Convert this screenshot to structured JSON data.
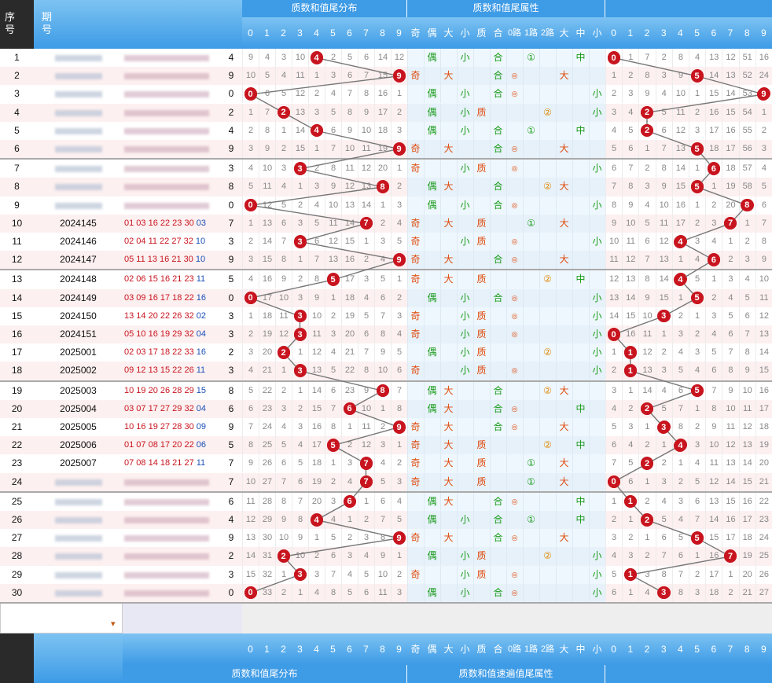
{
  "headers": {
    "seq_label": "序号",
    "issue_label": "期号",
    "primesum_dist": "质数和值尾分布",
    "primesum_attr": "质数和值尾属性",
    "foot_dist": "质数和值尾分布",
    "foot_attr": "质数和值速遍值尾属性",
    "digits": [
      "0",
      "1",
      "2",
      "3",
      "4",
      "5",
      "6",
      "7",
      "8",
      "9"
    ],
    "attr_labels": [
      "奇",
      "偶",
      "大",
      "小",
      "质",
      "合",
      "0路",
      "1路",
      "2路",
      "大",
      "中",
      "小"
    ],
    "scroll_arrow": "▾"
  },
  "rows": [
    {
      "seq": "1",
      "issue": "",
      "draw": "",
      "blue": "",
      "tail": 4,
      "miss": [
        "9",
        "4",
        "3",
        "10",
        "",
        "2",
        "5",
        "6",
        "14",
        "12"
      ],
      "oe": "偶",
      "bs": "小",
      "pc": "合",
      "road": "①",
      "zone": "中",
      "d2": 0,
      "miss2": [
        "",
        "1",
        "7",
        "2",
        "8",
        "4",
        "13",
        "12",
        "51",
        "16"
      ],
      "blur": true
    },
    {
      "seq": "2",
      "issue": "",
      "draw": "",
      "blue": "",
      "tail": 9,
      "miss": [
        "10",
        "5",
        "4",
        "11",
        "1",
        "3",
        "6",
        "7",
        "15",
        ""
      ],
      "oe": "奇",
      "bs": "大",
      "pc": "合",
      "road": "◎",
      "zone": "大",
      "d2": 5,
      "miss2": [
        "1",
        "2",
        "8",
        "3",
        "9",
        "",
        "14",
        "13",
        "52",
        "24"
      ],
      "blur": true
    },
    {
      "seq": "3",
      "issue": "",
      "draw": "",
      "blue": "",
      "tail": 0,
      "miss": [
        "",
        "6",
        "5",
        "12",
        "2",
        "4",
        "7",
        "8",
        "16",
        "1"
      ],
      "oe": "偶",
      "bs": "小",
      "pc": "合",
      "road": "◎",
      "zone": "小",
      "d2": 9,
      "miss2": [
        "2",
        "3",
        "9",
        "4",
        "10",
        "1",
        "15",
        "14",
        "53",
        ""
      ],
      "blur": true
    },
    {
      "seq": "4",
      "issue": "",
      "draw": "",
      "blue": "",
      "tail": 2,
      "miss": [
        "1",
        "7",
        "",
        "13",
        "3",
        "5",
        "8",
        "9",
        "17",
        "2"
      ],
      "oe": "偶",
      "bs": "小",
      "pc": "质",
      "road": "②",
      "zone": "小",
      "d2": 2,
      "miss2": [
        "3",
        "4",
        "",
        "5",
        "11",
        "2",
        "16",
        "15",
        "54",
        "1"
      ],
      "blur": true
    },
    {
      "seq": "5",
      "issue": "",
      "draw": "",
      "blue": "",
      "tail": 4,
      "miss": [
        "2",
        "8",
        "1",
        "14",
        "",
        "6",
        "9",
        "10",
        "18",
        "3"
      ],
      "oe": "偶",
      "bs": "小",
      "pc": "合",
      "road": "①",
      "zone": "中",
      "d2": 2,
      "miss2": [
        "4",
        "5",
        "",
        "6",
        "12",
        "3",
        "17",
        "16",
        "55",
        "2"
      ],
      "blur": true
    },
    {
      "seq": "6",
      "issue": "",
      "draw": "",
      "blue": "",
      "tail": 9,
      "miss": [
        "3",
        "9",
        "2",
        "15",
        "1",
        "7",
        "10",
        "11",
        "19",
        ""
      ],
      "oe": "奇",
      "bs": "大",
      "pc": "合",
      "road": "◎",
      "zone": "大",
      "d2": 5,
      "miss2": [
        "5",
        "6",
        "1",
        "7",
        "13",
        "",
        "18",
        "17",
        "56",
        "3"
      ],
      "blur": true
    },
    {
      "seq": "7",
      "issue": "",
      "draw": "",
      "blue": "",
      "tail": 3,
      "miss": [
        "4",
        "10",
        "3",
        "",
        "2",
        "8",
        "11",
        "12",
        "20",
        "1"
      ],
      "oe": "奇",
      "bs": "小",
      "pc": "质",
      "road": "◎",
      "zone": "小",
      "d2": 6,
      "miss2": [
        "6",
        "7",
        "2",
        "8",
        "14",
        "1",
        "",
        "18",
        "57",
        "4"
      ],
      "blur": true
    },
    {
      "seq": "8",
      "issue": "",
      "draw": "",
      "blue": "",
      "tail": 8,
      "miss": [
        "5",
        "11",
        "4",
        "1",
        "3",
        "9",
        "12",
        "13",
        "",
        "2"
      ],
      "oe": "偶",
      "bs": "大",
      "pc": "合",
      "road": "②",
      "zone": "大",
      "d2": 5,
      "miss2": [
        "7",
        "8",
        "3",
        "9",
        "15",
        "",
        "1",
        "19",
        "58",
        "5"
      ],
      "blur": true
    },
    {
      "seq": "9",
      "issue": "",
      "draw": "",
      "blue": "",
      "tail": 0,
      "miss": [
        "",
        "12",
        "5",
        "2",
        "4",
        "10",
        "13",
        "14",
        "1",
        "3"
      ],
      "oe": "偶",
      "bs": "小",
      "pc": "合",
      "road": "◎",
      "zone": "小",
      "d2": 8,
      "miss2": [
        "8",
        "9",
        "4",
        "10",
        "16",
        "1",
        "2",
        "20",
        "",
        "6"
      ],
      "blur": true
    },
    {
      "seq": "10",
      "issue": "2024145",
      "draw": "01 03 16 22 23 30",
      "blue": "03",
      "tail": 7,
      "miss": [
        "1",
        "13",
        "6",
        "3",
        "5",
        "11",
        "14",
        "",
        "2",
        "4"
      ],
      "oe": "奇",
      "bs": "大",
      "pc": "质",
      "road": "①",
      "zone": "大",
      "d2": 7,
      "miss2": [
        "9",
        "10",
        "5",
        "11",
        "17",
        "2",
        "3",
        "",
        "1",
        "7"
      ],
      "blur": false
    },
    {
      "seq": "11",
      "issue": "2024146",
      "draw": "02 04 11 22 27 32",
      "blue": "10",
      "tail": 3,
      "miss": [
        "2",
        "14",
        "7",
        "",
        "6",
        "12",
        "15",
        "1",
        "3",
        "5"
      ],
      "oe": "奇",
      "bs": "小",
      "pc": "质",
      "road": "◎",
      "zone": "小",
      "d2": 4,
      "miss2": [
        "10",
        "11",
        "6",
        "12",
        "",
        "3",
        "4",
        "1",
        "2",
        "8"
      ],
      "blur": false
    },
    {
      "seq": "12",
      "issue": "2024147",
      "draw": "05 11 13 16 21 30",
      "blue": "10",
      "tail": 9,
      "miss": [
        "3",
        "15",
        "8",
        "1",
        "7",
        "13",
        "16",
        "2",
        "4",
        ""
      ],
      "oe": "奇",
      "bs": "大",
      "pc": "合",
      "road": "◎",
      "zone": "大",
      "d2": 6,
      "miss2": [
        "11",
        "12",
        "7",
        "13",
        "1",
        "4",
        "",
        "2",
        "3",
        "9"
      ],
      "blur": false
    },
    {
      "seq": "13",
      "issue": "2024148",
      "draw": "02 06 15 16 21 23",
      "blue": "11",
      "tail": 5,
      "miss": [
        "4",
        "16",
        "9",
        "2",
        "8",
        "",
        "17",
        "3",
        "5",
        "1"
      ],
      "oe": "奇",
      "bs": "大",
      "pc": "质",
      "road": "②",
      "zone": "中",
      "d2": 4,
      "miss2": [
        "12",
        "13",
        "8",
        "14",
        "",
        "5",
        "1",
        "3",
        "4",
        "10"
      ],
      "blur": false
    },
    {
      "seq": "14",
      "issue": "2024149",
      "draw": "03 09 16 17 18 22",
      "blue": "16",
      "tail": 0,
      "miss": [
        "",
        "17",
        "10",
        "3",
        "9",
        "1",
        "18",
        "4",
        "6",
        "2"
      ],
      "oe": "偶",
      "bs": "小",
      "pc": "合",
      "road": "◎",
      "zone": "小",
      "d2": 5,
      "miss2": [
        "13",
        "14",
        "9",
        "15",
        "1",
        "",
        "2",
        "4",
        "5",
        "11"
      ],
      "blur": false
    },
    {
      "seq": "15",
      "issue": "2024150",
      "draw": "13 14 20 22 26 32",
      "blue": "02",
      "tail": 3,
      "miss": [
        "1",
        "18",
        "11",
        "",
        "10",
        "2",
        "19",
        "5",
        "7",
        "3"
      ],
      "oe": "奇",
      "bs": "小",
      "pc": "质",
      "road": "◎",
      "zone": "小",
      "d2": 3,
      "miss2": [
        "14",
        "15",
        "10",
        "",
        "2",
        "1",
        "3",
        "5",
        "6",
        "12"
      ],
      "blur": false
    },
    {
      "seq": "16",
      "issue": "2024151",
      "draw": "05 10 16 19 29 32",
      "blue": "04",
      "tail": 3,
      "miss": [
        "2",
        "19",
        "12",
        "",
        "11",
        "3",
        "20",
        "6",
        "8",
        "4"
      ],
      "oe": "奇",
      "bs": "小",
      "pc": "质",
      "road": "◎",
      "zone": "小",
      "d2": 0,
      "miss2": [
        "",
        "16",
        "11",
        "1",
        "3",
        "2",
        "4",
        "6",
        "7",
        "13"
      ],
      "blur": false
    },
    {
      "seq": "17",
      "issue": "2025001",
      "draw": "02 03 17 18 22 33",
      "blue": "16",
      "tail": 2,
      "miss": [
        "3",
        "20",
        "",
        "1",
        "12",
        "4",
        "21",
        "7",
        "9",
        "5"
      ],
      "oe": "偶",
      "bs": "小",
      "pc": "质",
      "road": "②",
      "zone": "小",
      "d2": 1,
      "miss2": [
        "1",
        "",
        "12",
        "2",
        "4",
        "3",
        "5",
        "7",
        "8",
        "14"
      ],
      "blur": false
    },
    {
      "seq": "18",
      "issue": "2025002",
      "draw": "09 12 13 15 22 26",
      "blue": "11",
      "tail": 3,
      "miss": [
        "4",
        "21",
        "1",
        "",
        "13",
        "5",
        "22",
        "8",
        "10",
        "6"
      ],
      "oe": "奇",
      "bs": "小",
      "pc": "质",
      "road": "◎",
      "zone": "小",
      "d2": 1,
      "miss2": [
        "2",
        "",
        "13",
        "3",
        "5",
        "4",
        "6",
        "8",
        "9",
        "15"
      ],
      "blur": false
    },
    {
      "seq": "19",
      "issue": "2025003",
      "draw": "10 19 20 26 28 29",
      "blue": "15",
      "tail": 8,
      "miss": [
        "5",
        "22",
        "2",
        "1",
        "14",
        "6",
        "23",
        "9",
        "",
        "7"
      ],
      "oe": "偶",
      "bs": "大",
      "pc": "合",
      "road": "②",
      "zone": "大",
      "d2": 5,
      "miss2": [
        "3",
        "1",
        "14",
        "4",
        "6",
        "",
        "7",
        "9",
        "10",
        "16"
      ],
      "blur": false
    },
    {
      "seq": "20",
      "issue": "2025004",
      "draw": "03 07 17 27 29 32",
      "blue": "04",
      "tail": 6,
      "miss": [
        "6",
        "23",
        "3",
        "2",
        "15",
        "7",
        "",
        "10",
        "1",
        "8"
      ],
      "oe": "偶",
      "bs": "大",
      "pc": "合",
      "road": "◎",
      "zone": "中",
      "d2": 2,
      "miss2": [
        "4",
        "2",
        "",
        "5",
        "7",
        "1",
        "8",
        "10",
        "11",
        "17"
      ],
      "blur": false
    },
    {
      "seq": "21",
      "issue": "2025005",
      "draw": "10 16 19 27 28 30",
      "blue": "09",
      "tail": 9,
      "miss": [
        "7",
        "24",
        "4",
        "3",
        "16",
        "8",
        "1",
        "11",
        "2",
        ""
      ],
      "oe": "奇",
      "bs": "大",
      "pc": "合",
      "road": "◎",
      "zone": "大",
      "d2": 3,
      "miss2": [
        "5",
        "3",
        "1",
        "",
        "8",
        "2",
        "9",
        "11",
        "12",
        "18"
      ],
      "blur": false
    },
    {
      "seq": "22",
      "issue": "2025006",
      "draw": "01 07 08 17 20 22",
      "blue": "06",
      "tail": 5,
      "miss": [
        "8",
        "25",
        "5",
        "4",
        "17",
        "",
        "2",
        "12",
        "3",
        "1"
      ],
      "oe": "奇",
      "bs": "大",
      "pc": "质",
      "road": "②",
      "zone": "中",
      "d2": 4,
      "miss2": [
        "6",
        "4",
        "2",
        "1",
        "",
        "3",
        "10",
        "12",
        "13",
        "19"
      ],
      "blur": false
    },
    {
      "seq": "23",
      "issue": "2025007",
      "draw": "07 08 14 18 21 27",
      "blue": "11",
      "tail": 7,
      "miss": [
        "9",
        "26",
        "6",
        "5",
        "18",
        "1",
        "3",
        "",
        "4",
        "2"
      ],
      "oe": "奇",
      "bs": "大",
      "pc": "质",
      "road": "①",
      "zone": "大",
      "d2": 2,
      "miss2": [
        "7",
        "5",
        "",
        "2",
        "1",
        "4",
        "11",
        "13",
        "14",
        "20"
      ],
      "blur": false
    },
    {
      "seq": "24",
      "issue": "",
      "draw": "",
      "blue": "",
      "tail": 7,
      "miss": [
        "10",
        "27",
        "7",
        "6",
        "19",
        "2",
        "4",
        "",
        "5",
        "3"
      ],
      "oe": "奇",
      "bs": "大",
      "pc": "质",
      "road": "①",
      "zone": "大",
      "d2": 0,
      "miss2": [
        "",
        "6",
        "1",
        "3",
        "2",
        "5",
        "12",
        "14",
        "15",
        "21"
      ],
      "blur": true
    },
    {
      "seq": "25",
      "issue": "",
      "draw": "",
      "blue": "",
      "tail": 6,
      "miss": [
        "11",
        "28",
        "8",
        "7",
        "20",
        "3",
        "",
        "1",
        "6",
        "4"
      ],
      "oe": "偶",
      "bs": "大",
      "pc": "合",
      "road": "◎",
      "zone": "中",
      "d2": 1,
      "miss2": [
        "1",
        "",
        "2",
        "4",
        "3",
        "6",
        "13",
        "15",
        "16",
        "22"
      ],
      "blur": true
    },
    {
      "seq": "26",
      "issue": "",
      "draw": "",
      "blue": "",
      "tail": 4,
      "miss": [
        "12",
        "29",
        "9",
        "8",
        "",
        "4",
        "1",
        "2",
        "7",
        "5"
      ],
      "oe": "偶",
      "bs": "小",
      "pc": "合",
      "road": "①",
      "zone": "中",
      "d2": 2,
      "miss2": [
        "2",
        "1",
        "",
        "5",
        "4",
        "7",
        "14",
        "16",
        "17",
        "23"
      ],
      "blur": true
    },
    {
      "seq": "27",
      "issue": "",
      "draw": "",
      "blue": "",
      "tail": 9,
      "miss": [
        "13",
        "30",
        "10",
        "9",
        "1",
        "5",
        "2",
        "3",
        "8",
        ""
      ],
      "oe": "奇",
      "bs": "大",
      "pc": "合",
      "road": "◎",
      "zone": "大",
      "d2": 5,
      "miss2": [
        "3",
        "2",
        "1",
        "6",
        "5",
        "",
        "15",
        "17",
        "18",
        "24"
      ],
      "blur": true
    },
    {
      "seq": "28",
      "issue": "",
      "draw": "",
      "blue": "",
      "tail": 2,
      "miss": [
        "14",
        "31",
        "",
        "10",
        "2",
        "6",
        "3",
        "4",
        "9",
        "1"
      ],
      "oe": "偶",
      "bs": "小",
      "pc": "质",
      "road": "②",
      "zone": "小",
      "d2": 7,
      "miss2": [
        "4",
        "3",
        "2",
        "7",
        "6",
        "1",
        "16",
        "",
        "19",
        "25"
      ],
      "blur": true
    },
    {
      "seq": "29",
      "issue": "",
      "draw": "",
      "blue": "",
      "tail": 3,
      "miss": [
        "15",
        "32",
        "1",
        "",
        "3",
        "7",
        "4",
        "5",
        "10",
        "2"
      ],
      "oe": "奇",
      "bs": "小",
      "pc": "质",
      "road": "◎",
      "zone": "小",
      "d2": 1,
      "miss2": [
        "5",
        "",
        "3",
        "8",
        "7",
        "2",
        "17",
        "1",
        "20",
        "26"
      ],
      "blur": true
    },
    {
      "seq": "30",
      "issue": "",
      "draw": "",
      "blue": "",
      "tail": 0,
      "miss": [
        "",
        "33",
        "2",
        "1",
        "4",
        "8",
        "5",
        "6",
        "11",
        "3"
      ],
      "oe": "偶",
      "bs": "小",
      "pc": "合",
      "road": "◎",
      "zone": "小",
      "d2": 3,
      "miss2": [
        "6",
        "1",
        "4",
        "",
        "8",
        "3",
        "18",
        "2",
        "21",
        "27"
      ],
      "blur": true
    }
  ],
  "colors": {
    "header_blue": "#3e9be6",
    "header_dark": "#2a2a2a",
    "ball_red": "#c8141e",
    "odd_orange": "#e04a0c",
    "even_green": "#1a9b1a",
    "attr_bg": "#dff0fb",
    "row_pink": "#fde8e8"
  }
}
